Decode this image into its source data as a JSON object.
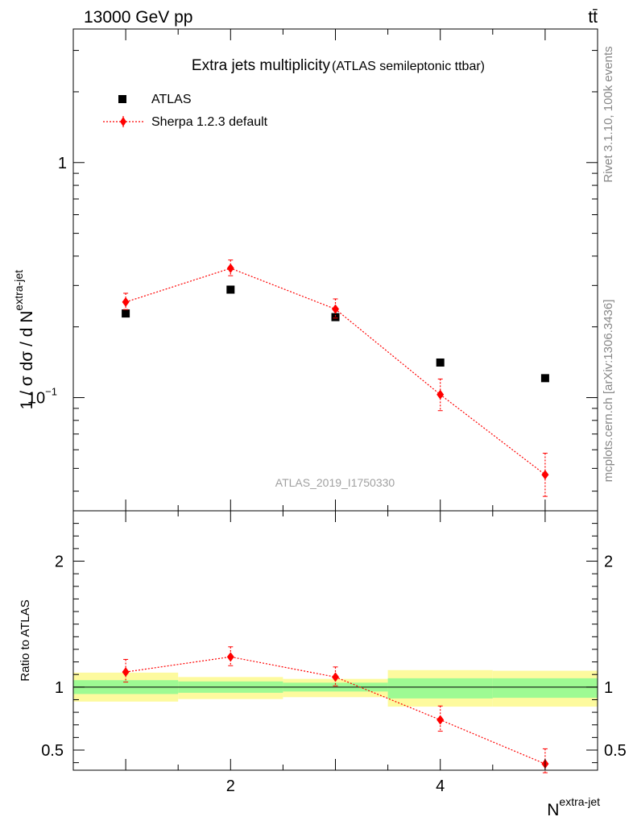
{
  "header": {
    "energy_label": "13000 GeV pp",
    "process_label": "tt̄"
  },
  "side_labels": {
    "rivet": "Rivet 3.1.10,  100k events",
    "source": "mcplots.cern.ch [arXiv:1306.3436]"
  },
  "chart_data": [
    {
      "type": "scatter",
      "title": "Extra jets multiplicity",
      "subtitle": "(ATLAS semileptonic ttbar)",
      "ylabel": "1 / σ dσ / d N",
      "ylabel_sup": "extra-jet",
      "watermark": "ATLAS_2019_I1750330",
      "yscale": "log",
      "xlim": [
        0.5,
        5.5
      ],
      "ylim": [
        0.033,
        3.7
      ],
      "x_ticks": [],
      "y_ticks": [
        {
          "value": 1,
          "label": "1"
        },
        {
          "value": 0.1,
          "label": "10",
          "sup": "−1"
        }
      ],
      "legend_position": "top-left",
      "series": [
        {
          "name": "ATLAS",
          "marker": "square",
          "color": "#000000",
          "x": [
            1,
            2,
            3,
            4,
            5
          ],
          "y": [
            0.228,
            0.288,
            0.22,
            0.141,
            0.121
          ]
        },
        {
          "name": "Sherpa 1.2.3 default",
          "marker": "diamond",
          "color": "#ff0000",
          "line": "dotted",
          "x": [
            1,
            2,
            3,
            4,
            5
          ],
          "y": [
            0.255,
            0.355,
            0.238,
            0.103,
            0.047
          ],
          "err_low": [
            0.018,
            0.025,
            0.02,
            0.015,
            0.009
          ],
          "err_high": [
            0.023,
            0.03,
            0.025,
            0.017,
            0.011
          ]
        }
      ]
    },
    {
      "type": "scatter",
      "ylabel": "Ratio to ATLAS",
      "xlabel": "N",
      "xlabel_sup": "extra-jet",
      "yscale": "linear",
      "xlim": [
        0.5,
        5.5
      ],
      "ylim": [
        0.34,
        2.4
      ],
      "x_ticks": [
        {
          "value": 2,
          "label": "2"
        },
        {
          "value": 4,
          "label": "4"
        }
      ],
      "y_ticks": [
        {
          "value": 2,
          "label": "2"
        },
        {
          "value": 1,
          "label": "1"
        },
        {
          "value": 0.5,
          "label": "0.5"
        }
      ],
      "reference_line": 1,
      "bands": [
        {
          "x": [
            0.5,
            1.5
          ],
          "inner": [
            0.945,
            1.055
          ],
          "outer": [
            0.885,
            1.115
          ]
        },
        {
          "x": [
            1.5,
            2.5
          ],
          "inner": [
            0.955,
            1.045
          ],
          "outer": [
            0.905,
            1.08
          ]
        },
        {
          "x": [
            2.5,
            3.5
          ],
          "inner": [
            0.965,
            1.035
          ],
          "outer": [
            0.92,
            1.065
          ]
        },
        {
          "x": [
            3.5,
            4.5
          ],
          "inner": [
            0.91,
            1.07
          ],
          "outer": [
            0.845,
            1.135
          ]
        },
        {
          "x": [
            4.5,
            5.5
          ],
          "inner": [
            0.915,
            1.07
          ],
          "outer": [
            0.845,
            1.13
          ]
        }
      ],
      "band_colors": {
        "inner": "#9efa93",
        "outer": "#fdfa9e"
      },
      "series": [
        {
          "name": "Sherpa 1.2.3 default",
          "marker": "diamond",
          "color": "#ff0000",
          "line": "dotted",
          "x": [
            1,
            2,
            3,
            4,
            5
          ],
          "y": [
            1.12,
            1.24,
            1.08,
            0.74,
            0.39
          ],
          "err_low": [
            0.08,
            0.07,
            0.07,
            0.09,
            0.07
          ],
          "err_high": [
            0.1,
            0.08,
            0.08,
            0.11,
            0.12
          ]
        }
      ]
    }
  ]
}
